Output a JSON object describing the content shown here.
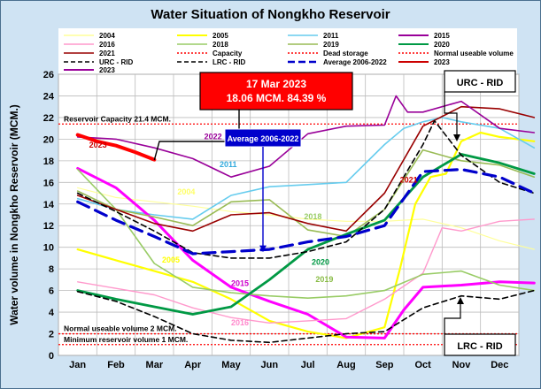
{
  "chart_data": {
    "type": "line",
    "title": "Water Situation of Nongkho Reservoir",
    "ylabel": "Water volume in Nongkho Reservoir (MCM.)",
    "xlabel": "",
    "ylim": [
      0,
      26
    ],
    "yticks": [
      0,
      2,
      4,
      6,
      8,
      10,
      12,
      14,
      16,
      18,
      20,
      22,
      24,
      26
    ],
    "months": [
      "Jan",
      "Feb",
      "Mar",
      "Apr",
      "May",
      "Jun",
      "Jul",
      "Aug",
      "Sep",
      "Oct",
      "Nov",
      "Dec"
    ],
    "grid": true,
    "legend_position": "top",
    "reference_lines": [
      {
        "key": "capacity",
        "name": "Capacity",
        "value": 21.4,
        "color": "#ff0000",
        "label": "Reservoir Capacity 21.4 MCM."
      },
      {
        "key": "normal",
        "name": "Normal useable volume",
        "value": 2.0,
        "color": "#ff0000",
        "label": "Normal useable volume 2 MCM."
      },
      {
        "key": "dead",
        "name": "Dead storage",
        "value": 1.0,
        "color": "#ff0000",
        "label": "Minimum reservoir volume 1 MCM."
      }
    ],
    "series": [
      {
        "name": "2004",
        "color": "#ffff99",
        "width": 1.2,
        "dash": "",
        "points": [
          [
            0,
            15.5
          ],
          [
            1,
            14.6
          ],
          [
            2,
            14.2
          ],
          [
            3,
            13.8
          ],
          [
            4,
            13.3
          ],
          [
            5,
            13.0
          ],
          [
            6,
            12.6
          ],
          [
            7,
            12.4
          ],
          [
            8,
            12.4
          ],
          [
            9,
            12.6
          ],
          [
            10,
            11.8
          ],
          [
            11,
            10.6
          ],
          [
            11.9,
            9.8
          ]
        ]
      },
      {
        "name": "2005",
        "color": "#ffff00",
        "width": 2.2,
        "dash": "",
        "points": [
          [
            0,
            9.8
          ],
          [
            1,
            8.8
          ],
          [
            2,
            7.8
          ],
          [
            3,
            6.8
          ],
          [
            4,
            5.2
          ],
          [
            5,
            3.2
          ],
          [
            6,
            2.2
          ],
          [
            7,
            1.6
          ],
          [
            8,
            2.6
          ],
          [
            8.4,
            8.0
          ],
          [
            8.8,
            14.0
          ],
          [
            9.2,
            16.5
          ],
          [
            9.6,
            16.8
          ],
          [
            10,
            19.8
          ],
          [
            10.5,
            20.6
          ],
          [
            11,
            20.2
          ],
          [
            11.9,
            19.8
          ]
        ]
      },
      {
        "name": "2011",
        "color": "#66ccee",
        "width": 1.6,
        "dash": "",
        "points": [
          [
            0,
            14.5
          ],
          [
            1,
            13.5
          ],
          [
            2,
            13.0
          ],
          [
            3,
            12.6
          ],
          [
            4,
            14.8
          ],
          [
            5,
            15.6
          ],
          [
            6,
            15.8
          ],
          [
            7,
            16.0
          ],
          [
            8,
            19.5
          ],
          [
            8.5,
            21.0
          ],
          [
            9,
            21.6
          ],
          [
            9.5,
            22.0
          ],
          [
            10,
            21.6
          ],
          [
            11,
            21.0
          ],
          [
            11.9,
            19.2
          ]
        ]
      },
      {
        "name": "2015",
        "color": "#ff00ff",
        "width": 3.0,
        "dash": "",
        "points": [
          [
            0,
            17.3
          ],
          [
            1,
            15.5
          ],
          [
            2,
            12.5
          ],
          [
            3,
            8.8
          ],
          [
            4,
            6.3
          ],
          [
            5,
            5.0
          ],
          [
            6,
            3.8
          ],
          [
            7,
            1.7
          ],
          [
            8,
            1.6
          ],
          [
            8.5,
            4.2
          ],
          [
            9,
            6.3
          ],
          [
            10,
            6.5
          ],
          [
            11,
            6.8
          ],
          [
            11.9,
            6.7
          ]
        ]
      },
      {
        "name": "2016",
        "color": "#ff99cc",
        "width": 1.4,
        "dash": "",
        "points": [
          [
            0,
            6.8
          ],
          [
            1,
            6.2
          ],
          [
            2,
            5.6
          ],
          [
            3,
            4.4
          ],
          [
            4,
            3.5
          ],
          [
            5,
            3.0
          ],
          [
            6,
            3.2
          ],
          [
            7,
            3.4
          ],
          [
            8,
            5.2
          ],
          [
            9,
            7.6
          ],
          [
            9.5,
            11.8
          ],
          [
            10,
            11.5
          ],
          [
            11,
            12.4
          ],
          [
            11.9,
            12.6
          ]
        ]
      },
      {
        "name": "2018",
        "color": "#99cc66",
        "width": 1.6,
        "dash": "",
        "points": [
          [
            0,
            17.2
          ],
          [
            1,
            13.5
          ],
          [
            2,
            8.5
          ],
          [
            3,
            6.3
          ],
          [
            4,
            5.8
          ],
          [
            5,
            5.5
          ],
          [
            6,
            5.3
          ],
          [
            7,
            5.5
          ],
          [
            8,
            6.0
          ],
          [
            9,
            7.5
          ],
          [
            10,
            7.8
          ],
          [
            11,
            6.5
          ],
          [
            11.9,
            6.0
          ]
        ]
      },
      {
        "name": "2019",
        "color": "#99bb55",
        "width": 1.6,
        "dash": "",
        "points": [
          [
            0,
            15.2
          ],
          [
            1,
            13.5
          ],
          [
            2,
            12.8
          ],
          [
            3,
            12.0
          ],
          [
            4,
            14.2
          ],
          [
            5,
            14.4
          ],
          [
            6,
            11.6
          ],
          [
            7,
            11.0
          ],
          [
            8,
            13.5
          ],
          [
            9,
            19.0
          ],
          [
            10,
            18.0
          ],
          [
            11,
            17.6
          ],
          [
            11.9,
            16.5
          ]
        ]
      },
      {
        "name": "2020",
        "color": "#009944",
        "width": 2.8,
        "dash": "",
        "points": [
          [
            0,
            6.0
          ],
          [
            1,
            5.2
          ],
          [
            2,
            4.5
          ],
          [
            3,
            3.8
          ],
          [
            4,
            4.5
          ],
          [
            5,
            7.0
          ],
          [
            6,
            9.8
          ],
          [
            7,
            11.2
          ],
          [
            8,
            12.5
          ],
          [
            9,
            16.5
          ],
          [
            10,
            18.6
          ],
          [
            11,
            17.8
          ],
          [
            11.9,
            16.8
          ]
        ]
      },
      {
        "name": "2021",
        "color": "#990000",
        "width": 1.6,
        "dash": "",
        "points": [
          [
            0,
            14.8
          ],
          [
            1,
            13.5
          ],
          [
            2,
            12.2
          ],
          [
            3,
            11.5
          ],
          [
            4,
            13.0
          ],
          [
            5,
            13.2
          ],
          [
            6,
            12.2
          ],
          [
            7,
            11.5
          ],
          [
            8,
            15.0
          ],
          [
            9,
            21.2
          ],
          [
            10,
            23.0
          ],
          [
            11,
            22.8
          ],
          [
            11.9,
            22.0
          ]
        ]
      },
      {
        "name": "2023",
        "color": "#990099",
        "width": 1.6,
        "dash": "",
        "points": [
          [
            0,
            20.2
          ],
          [
            1,
            20.0
          ],
          [
            2,
            19.2
          ],
          [
            3,
            18.2
          ],
          [
            4,
            16.5
          ],
          [
            5,
            17.5
          ],
          [
            6,
            20.5
          ],
          [
            7,
            21.2
          ],
          [
            8,
            21.3
          ],
          [
            8.3,
            24.0
          ],
          [
            8.6,
            22.5
          ],
          [
            9,
            22.5
          ],
          [
            10,
            23.5
          ],
          [
            11,
            21.0
          ],
          [
            11.9,
            20.6
          ]
        ]
      },
      {
        "name": "URC - RID",
        "color": "#000000",
        "width": 1.6,
        "dash": "6,4",
        "points": [
          [
            0,
            15.0
          ],
          [
            1,
            13.3
          ],
          [
            2,
            11.5
          ],
          [
            3,
            9.5
          ],
          [
            4,
            9.0
          ],
          [
            5,
            9.0
          ],
          [
            6,
            9.6
          ],
          [
            7,
            10.5
          ],
          [
            8,
            13.5
          ],
          [
            9,
            19.5
          ],
          [
            9.3,
            21.7
          ],
          [
            10,
            18.5
          ],
          [
            11,
            16.0
          ],
          [
            11.9,
            15.0
          ]
        ]
      },
      {
        "name": "LRC - RID",
        "color": "#000000",
        "width": 1.6,
        "dash": "6,4",
        "points": [
          [
            0,
            5.9
          ],
          [
            1,
            5.0
          ],
          [
            2,
            3.6
          ],
          [
            3,
            2.0
          ],
          [
            4,
            1.4
          ],
          [
            5,
            1.2
          ],
          [
            6,
            1.6
          ],
          [
            7,
            2.0
          ],
          [
            8,
            2.2
          ],
          [
            9,
            4.4
          ],
          [
            10,
            5.5
          ],
          [
            11,
            5.2
          ],
          [
            11.9,
            6.0
          ]
        ]
      },
      {
        "name": "Average 2006-2022",
        "color": "#0000cc",
        "width": 3.2,
        "dash": "14,8",
        "points": [
          [
            0,
            14.2
          ],
          [
            1,
            12.5
          ],
          [
            2,
            11.0
          ],
          [
            3,
            9.4
          ],
          [
            4,
            9.6
          ],
          [
            5,
            9.8
          ],
          [
            6,
            10.5
          ],
          [
            7,
            11.0
          ],
          [
            8,
            12.0
          ],
          [
            9,
            17.0
          ],
          [
            10,
            17.2
          ],
          [
            11,
            16.5
          ],
          [
            11.9,
            15.0
          ]
        ]
      },
      {
        "name": "2023 current",
        "color": "#ff0000",
        "width": 4.0,
        "dash": "",
        "points": [
          [
            0,
            20.4
          ],
          [
            0.5,
            19.8
          ],
          [
            1,
            19.4
          ],
          [
            1.5,
            18.8
          ],
          [
            2,
            18.1
          ]
        ]
      }
    ],
    "legend_entries": [
      {
        "label": "2004",
        "color": "#ffff99",
        "dash": "",
        "width": 1.5
      },
      {
        "label": "2005",
        "color": "#ffff00",
        "dash": "",
        "width": 2
      },
      {
        "label": "2011",
        "color": "#66ccee",
        "dash": "",
        "width": 1.5
      },
      {
        "label": "2015",
        "color": "#990099",
        "dash": "",
        "width": 2
      },
      {
        "label": "2016",
        "color": "#ff99cc",
        "dash": "",
        "width": 1.5
      },
      {
        "label": "2018",
        "color": "#99cc66",
        "dash": "",
        "width": 1.5
      },
      {
        "label": "2019",
        "color": "#99bb55",
        "dash": "",
        "width": 1.5
      },
      {
        "label": "2020",
        "color": "#009944",
        "dash": "",
        "width": 2
      },
      {
        "label": "2021",
        "color": "#990000",
        "dash": "",
        "width": 1.5
      },
      {
        "label": "Capacity",
        "color": "#ff0000",
        "dash": "2,2",
        "width": 1.5
      },
      {
        "label": "Dead storage",
        "color": "#ff0000",
        "dash": "2,2",
        "width": 1.5
      },
      {
        "label": "Normal useable volume",
        "color": "#ff0000",
        "dash": "2,2",
        "width": 1.5
      },
      {
        "label": "URC - RID",
        "color": "#000000",
        "dash": "5,3",
        "width": 1.5
      },
      {
        "label": "LRC - RID",
        "color": "#000000",
        "dash": "5,3",
        "width": 1.5
      },
      {
        "label": "Average 2006-2022",
        "color": "#0000cc",
        "dash": "8,4",
        "width": 2.5
      },
      {
        "label": "2023",
        "color": "#cc0000",
        "dash": "",
        "width": 2
      },
      {
        "label": "2023",
        "color": "#990099",
        "dash": "",
        "width": 2
      }
    ],
    "series_labels": [
      {
        "text": "2004",
        "x": 2.6,
        "y": 14.9,
        "color": "#ffff66"
      },
      {
        "text": "2005",
        "x": 2.2,
        "y": 8.6,
        "color": "#ffff00"
      },
      {
        "text": "2011",
        "x": 3.7,
        "y": 17.4,
        "color": "#33aadd"
      },
      {
        "text": "2015",
        "x": 4.0,
        "y": 6.4,
        "color": "#cc00cc"
      },
      {
        "text": "2016",
        "x": 4.0,
        "y": 2.8,
        "color": "#ff88cc"
      },
      {
        "text": "2018",
        "x": 5.9,
        "y": 12.6,
        "color": "#99cc66"
      },
      {
        "text": "2019",
        "x": 6.2,
        "y": 6.8,
        "color": "#88bb44"
      },
      {
        "text": "2020",
        "x": 6.1,
        "y": 8.4,
        "color": "#009944"
      },
      {
        "text": "2021",
        "x": 8.4,
        "y": 16.0,
        "color": "#cc0000"
      },
      {
        "text": "2022",
        "x": 3.3,
        "y": 20.0,
        "color": "#990099"
      },
      {
        "text": "2023",
        "x": 0.3,
        "y": 19.2,
        "color": "#cc0000"
      }
    ],
    "annotations": {
      "current": {
        "date": "17 Mar 2023",
        "text": "18.06 MCM. 84.39 %",
        "x": 2.0,
        "y": 18.06
      },
      "average_label": {
        "text": "Average 2006-2022"
      },
      "urc_label": {
        "text": "URC - RID"
      },
      "lrc_label": {
        "text": "LRC - RID"
      }
    }
  }
}
